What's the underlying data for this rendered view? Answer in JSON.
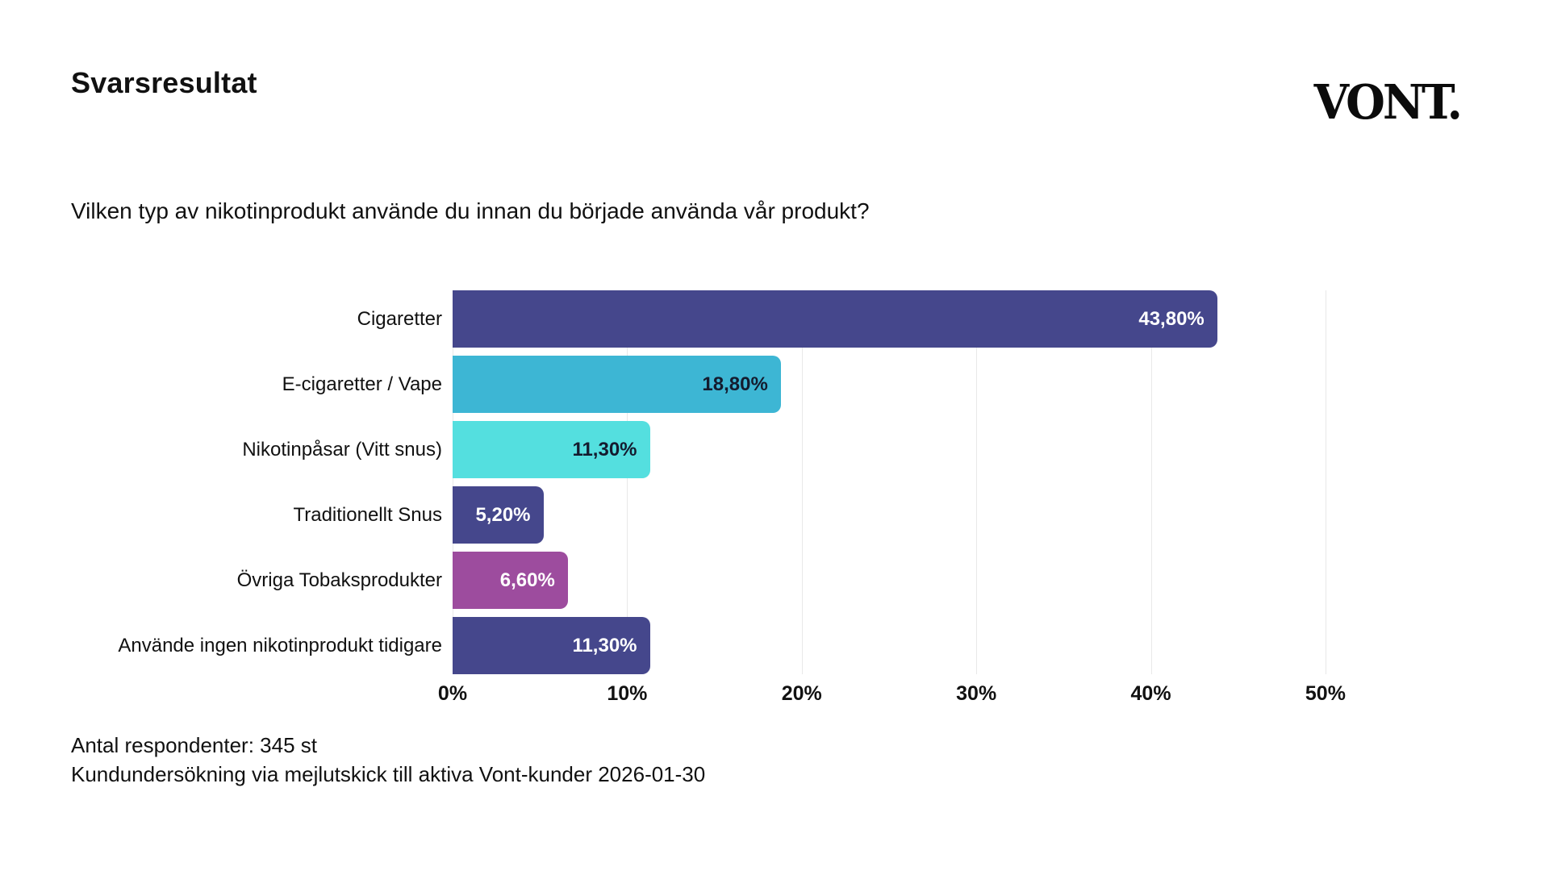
{
  "header": {
    "title": "Svarsresultat",
    "logo": "VONT."
  },
  "question": "Vilken typ av nikotinprodukt använde du innan du började använda vår produkt?",
  "chart_data": {
    "type": "bar",
    "orientation": "horizontal",
    "title": "",
    "xlabel": "",
    "ylabel": "",
    "legend": "none",
    "grid": "vertical-light",
    "categories": [
      "Cigaretter",
      "E-cigaretter / Vape",
      "Nikotinpåsar (Vitt snus)",
      "Traditionellt Snus",
      "Övriga Tobaksprodukter",
      "Använde ingen nikotinprodukt tidigare"
    ],
    "values": [
      43.8,
      18.8,
      11.3,
      5.2,
      6.6,
      11.3
    ],
    "value_labels": [
      "43,80%",
      "18,80%",
      "11,30%",
      "5,20%",
      "6,60%",
      "11,30%"
    ],
    "bar_colors": [
      "#45478C",
      "#3DB6D4",
      "#54DFDF",
      "#45478C",
      "#9D4C9E",
      "#45478C"
    ],
    "value_label_colors": [
      "#ffffff",
      "#141b2e",
      "#141b2e",
      "#ffffff",
      "#ffffff",
      "#ffffff"
    ],
    "x_ticks": [
      "0%",
      "10%",
      "20%",
      "30%",
      "40%",
      "50%"
    ],
    "x_tick_values": [
      0,
      10,
      20,
      30,
      40,
      50
    ],
    "xlim": [
      0,
      53.7
    ]
  },
  "footer": {
    "line1": "Antal respondenter: 345 st",
    "line2": "Kundundersökning via mejlutskick till aktiva Vont-kunder 2026-01-30"
  },
  "colors": {
    "background": "#ffffff",
    "text": "#111111",
    "gridline": "#e8e8e8"
  }
}
